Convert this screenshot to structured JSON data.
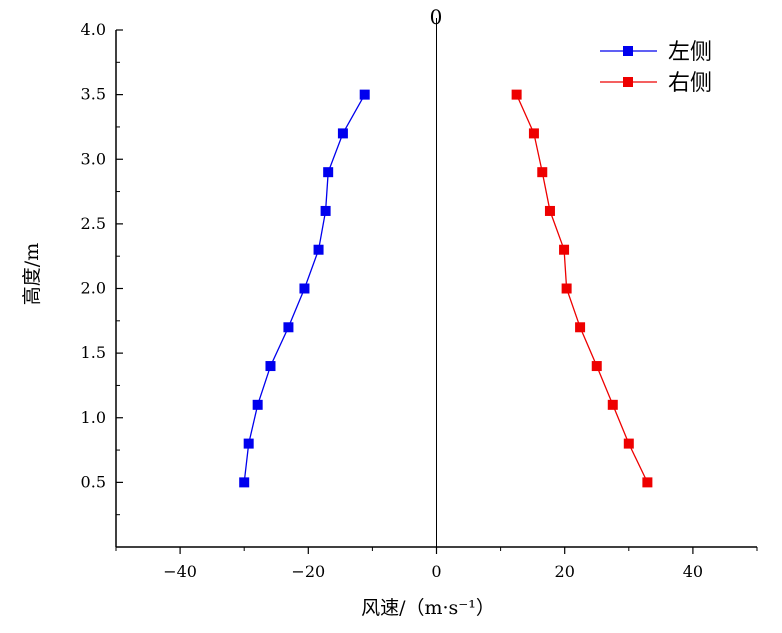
{
  "chart_data": {
    "type": "line",
    "title": "",
    "xlabel": "风速/（m·s⁻¹）",
    "ylabel": "高度/m",
    "zero_label": "0",
    "xlim": [
      -50,
      50
    ],
    "ylim": [
      0,
      4.0
    ],
    "x_ticks": [
      -40,
      -20,
      0,
      20,
      40
    ],
    "x_tick_labels": [
      "−40",
      "−20",
      "0",
      "20",
      "40"
    ],
    "y_ticks": [
      0.5,
      1.0,
      1.5,
      2.0,
      2.5,
      3.0,
      3.5,
      4.0
    ],
    "y_tick_labels": [
      "0.5",
      "1.0",
      "1.5",
      "2.0",
      "2.5",
      "3.0",
      "3.5",
      "4.0"
    ],
    "grid": false,
    "legend_position": "top-right",
    "series": [
      {
        "name": "左侧",
        "color": "#0000ee",
        "marker": "square",
        "points": [
          {
            "x": -30.0,
            "y": 0.5
          },
          {
            "x": -29.3,
            "y": 0.8
          },
          {
            "x": -27.9,
            "y": 1.1
          },
          {
            "x": -25.9,
            "y": 1.4
          },
          {
            "x": -23.1,
            "y": 1.7
          },
          {
            "x": -20.6,
            "y": 2.0
          },
          {
            "x": -18.4,
            "y": 2.3
          },
          {
            "x": -17.3,
            "y": 2.6
          },
          {
            "x": -16.9,
            "y": 2.9
          },
          {
            "x": -14.6,
            "y": 3.2
          },
          {
            "x": -11.2,
            "y": 3.5
          }
        ]
      },
      {
        "name": "右侧",
        "color": "#ee0000",
        "marker": "square",
        "points": [
          {
            "x": 32.9,
            "y": 0.5
          },
          {
            "x": 30.0,
            "y": 0.8
          },
          {
            "x": 27.5,
            "y": 1.1
          },
          {
            "x": 25.0,
            "y": 1.4
          },
          {
            "x": 22.4,
            "y": 1.7
          },
          {
            "x": 20.3,
            "y": 2.0
          },
          {
            "x": 19.9,
            "y": 2.3
          },
          {
            "x": 17.7,
            "y": 2.6
          },
          {
            "x": 16.5,
            "y": 2.9
          },
          {
            "x": 15.2,
            "y": 3.2
          },
          {
            "x": 12.5,
            "y": 3.5
          }
        ]
      }
    ]
  }
}
